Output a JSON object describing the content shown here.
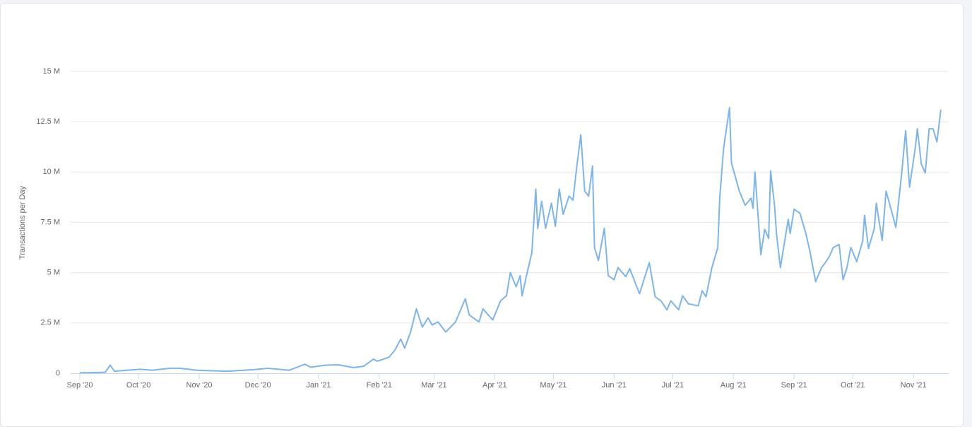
{
  "chart_data": {
    "type": "line",
    "y_label": "Transactions per Day",
    "color": "#7cb5ec",
    "grid": true,
    "xlim": [
      -4.7,
      444
    ],
    "ylim": [
      0,
      15
    ],
    "xticks": [
      {
        "value": 0,
        "label": "Sep '20"
      },
      {
        "value": 30,
        "label": "Oct '20"
      },
      {
        "value": 61,
        "label": "Nov '20"
      },
      {
        "value": 91,
        "label": "Dec '20"
      },
      {
        "value": 122,
        "label": "Jan '21"
      },
      {
        "value": 153,
        "label": "Feb '21"
      },
      {
        "value": 181,
        "label": "Mar '21"
      },
      {
        "value": 212,
        "label": "Apr '21"
      },
      {
        "value": 242,
        "label": "May '21"
      },
      {
        "value": 273,
        "label": "Jun '21"
      },
      {
        "value": 303,
        "label": "Jul '21"
      },
      {
        "value": 334,
        "label": "Aug '21"
      },
      {
        "value": 365,
        "label": "Sep '21"
      },
      {
        "value": 395,
        "label": "Oct '21"
      },
      {
        "value": 426,
        "label": "Nov '21"
      }
    ],
    "yticks": [
      0,
      {
        "value": 2.5,
        "label": "2.5 M"
      },
      {
        "value": 5,
        "label": "5 M"
      },
      {
        "value": 7.5,
        "label": "7.5 M"
      },
      {
        "value": 10,
        "label": "10 M"
      },
      {
        "value": 12.5,
        "label": "12.5 M"
      },
      {
        "value": 15,
        "label": "15 M"
      }
    ],
    "x": [
      0,
      13,
      15.5,
      17.7,
      24,
      31,
      37,
      46,
      51,
      60,
      75,
      89,
      96,
      107,
      111,
      115,
      118,
      125,
      132,
      140,
      145,
      150,
      152,
      158,
      161,
      164,
      166,
      169,
      172,
      175,
      178,
      180,
      183,
      187,
      192,
      197,
      199,
      204,
      206,
      211,
      215,
      218,
      220,
      223,
      225,
      226,
      228,
      231,
      233,
      234,
      236,
      238,
      241,
      243,
      245,
      247,
      250,
      252,
      254,
      256,
      258,
      260,
      262,
      263,
      265,
      268,
      270,
      273,
      275,
      279,
      281,
      284,
      286,
      291,
      294,
      297,
      300,
      302,
      306,
      308,
      311,
      316,
      318,
      320,
      323,
      326,
      327,
      329,
      332,
      333,
      335,
      337,
      340,
      343,
      344,
      345,
      348,
      350,
      352,
      353,
      355,
      356,
      358,
      362,
      363,
      365,
      368,
      371,
      373,
      376,
      379,
      381,
      383,
      385,
      388,
      390,
      392,
      394,
      397,
      400,
      401,
      403,
      406,
      407,
      410,
      412,
      414,
      417,
      420,
      422,
      424,
      427,
      428,
      430,
      432,
      434,
      436,
      438,
      440
    ],
    "values": [
      0.02,
      0.05,
      0.4,
      0.1,
      0.15,
      0.2,
      0.15,
      0.25,
      0.25,
      0.15,
      0.1,
      0.18,
      0.25,
      0.15,
      0.3,
      0.45,
      0.3,
      0.4,
      0.42,
      0.28,
      0.35,
      0.7,
      0.6,
      0.8,
      1.15,
      1.7,
      1.25,
      2.05,
      3.2,
      2.3,
      2.75,
      2.4,
      2.55,
      2.05,
      2.55,
      3.7,
      2.9,
      2.55,
      3.2,
      2.65,
      3.6,
      3.85,
      5.0,
      4.3,
      4.85,
      3.85,
      4.75,
      6.0,
      9.15,
      7.2,
      8.55,
      7.2,
      8.45,
      7.3,
      9.15,
      7.9,
      8.8,
      8.6,
      10.3,
      11.85,
      9.05,
      8.8,
      10.3,
      6.25,
      5.6,
      7.2,
      4.85,
      4.65,
      5.25,
      4.8,
      5.2,
      4.45,
      3.95,
      5.5,
      3.8,
      3.6,
      3.15,
      3.6,
      3.15,
      3.85,
      3.45,
      3.35,
      4.1,
      3.8,
      5.25,
      6.25,
      8.7,
      11.2,
      13.2,
      10.45,
      9.75,
      9.05,
      8.35,
      8.7,
      8.2,
      10.0,
      5.9,
      7.15,
      6.7,
      10.05,
      8.35,
      6.95,
      5.25,
      7.65,
      6.95,
      8.15,
      7.95,
      6.95,
      6.1,
      4.55,
      5.25,
      5.5,
      5.8,
      6.25,
      6.4,
      4.65,
      5.25,
      6.25,
      5.55,
      6.55,
      7.85,
      6.2,
      7.2,
      8.45,
      6.6,
      9.05,
      8.35,
      7.25,
      9.95,
      12.05,
      9.25,
      11.25,
      12.15,
      10.4,
      9.95,
      12.15,
      12.15,
      11.5,
      13.1
    ]
  }
}
